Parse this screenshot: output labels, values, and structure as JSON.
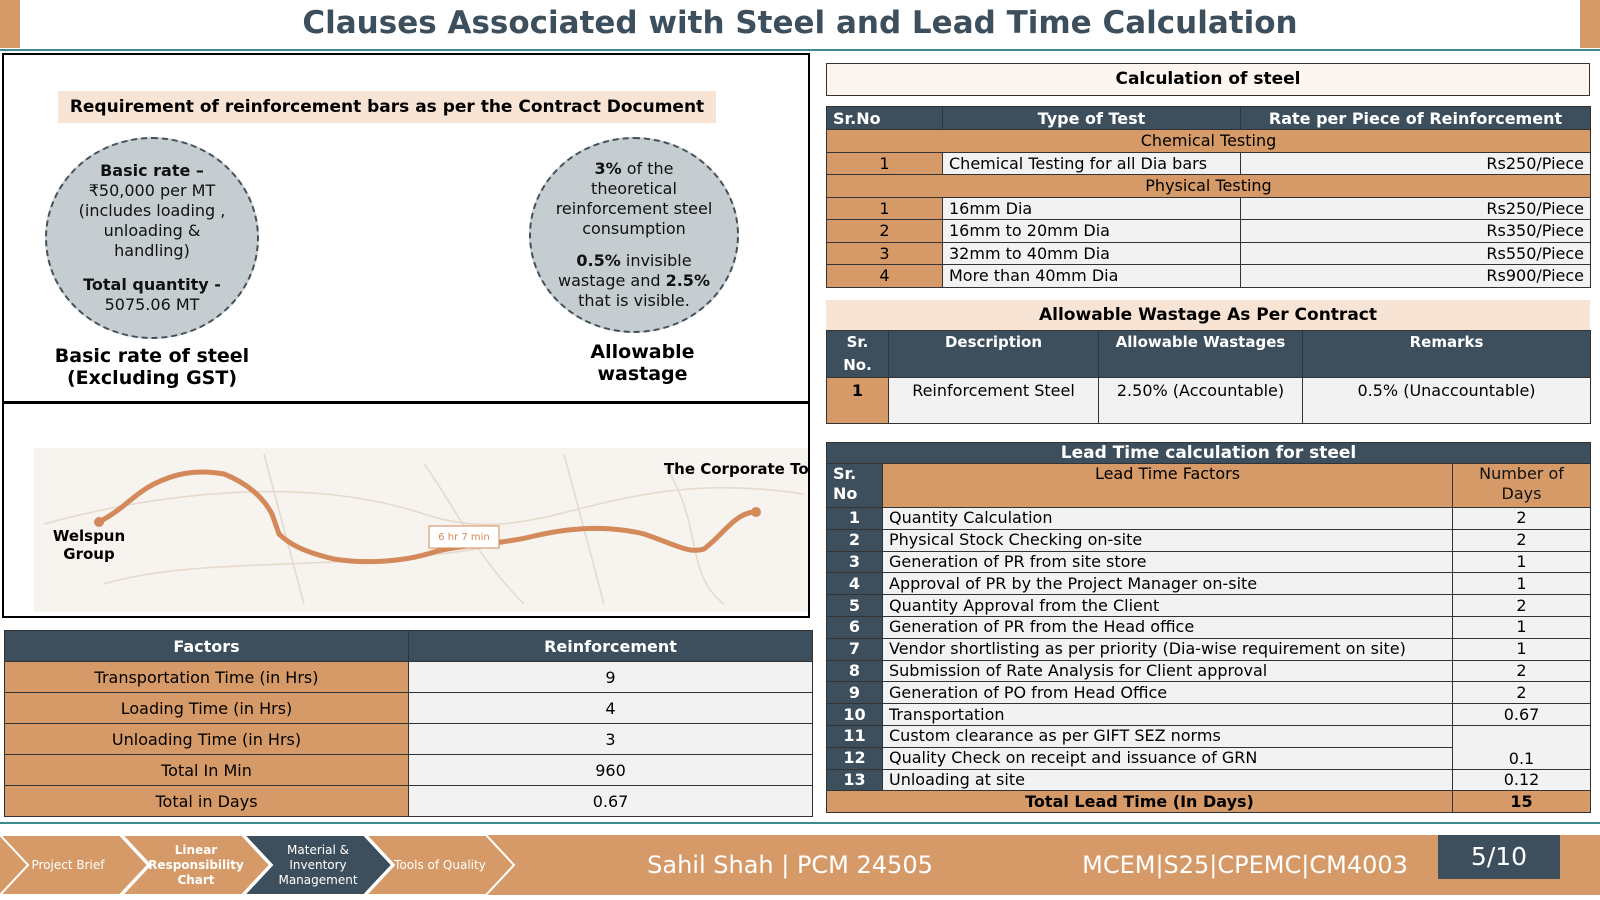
{
  "title": "Clauses Associated with Steel and Lead Time Calculation",
  "requirement": {
    "heading": "Requirement of reinforcement bars as per the Contract Document",
    "basic_rate": {
      "label": "Basic rate –",
      "text": "₹50,000 per MT (includes loading , unloading & handling)",
      "quantity_label": "Total quantity -",
      "quantity": "5075.06 MT",
      "caption": "Basic rate of steel (Excluding GST)"
    },
    "wastage": {
      "part1_bold": "3%",
      "part1": " of the theoretical reinforcement steel consumption",
      "part2_bold": "0.5%",
      "part2": " invisible wastage and ",
      "part3_bold": "2.5%",
      "part3": " that is visible.",
      "caption": "Allowable wastage"
    }
  },
  "map": {
    "origin": "Welspun Group",
    "destination": "The Corporate Tower",
    "duration": "6 hr 7 min"
  },
  "factors_table": {
    "header": [
      "Factors",
      "Reinforcement"
    ],
    "rows": [
      [
        "Transportation Time (in Hrs)",
        "9"
      ],
      [
        "Loading Time (in Hrs)",
        "4"
      ],
      [
        "Unloading Time (in Hrs)",
        "3"
      ],
      [
        "Total In Min",
        "960"
      ],
      [
        "Total in Days",
        "0.67"
      ]
    ]
  },
  "steel_table": {
    "title": "Calculation of steel",
    "header": [
      "Sr.No",
      "Type of Test",
      "Rate per Piece of Reinforcement"
    ],
    "sections": [
      {
        "name": "Chemical Testing",
        "rows": [
          [
            "1",
            "Chemical Testing for all Dia bars",
            "Rs250/Piece"
          ]
        ]
      },
      {
        "name": "Physical Testing",
        "rows": [
          [
            "1",
            "16mm Dia",
            "Rs250/Piece"
          ],
          [
            "2",
            "16mm to 20mm Dia",
            "Rs350/Piece"
          ],
          [
            "3",
            "32mm to 40mm Dia",
            "Rs550/Piece"
          ],
          [
            "4",
            "More than 40mm Dia",
            "Rs900/Piece"
          ]
        ]
      }
    ]
  },
  "wastage_table": {
    "title": "Allowable Wastage As Per Contract",
    "header": [
      "Sr. No.",
      "Description",
      "Allowable Wastages",
      "Remarks"
    ],
    "rows": [
      [
        "1",
        "Reinforcement Steel",
        "2.50% (Accountable)",
        "0.5% (Unaccountable)"
      ]
    ]
  },
  "lead_table": {
    "title": "Lead Time calculation for steel",
    "header": [
      "Sr. No",
      "Lead Time Factors",
      "Number of Days"
    ],
    "rows": [
      {
        "no": "1",
        "factor": "Quantity Calculation",
        "days": "2"
      },
      {
        "no": "2",
        "factor": "Physical Stock Checking on-site",
        "days": "2"
      },
      {
        "no": "3",
        "factor": "Generation of PR from site store",
        "days": "1"
      },
      {
        "no": "4",
        "factor": "Approval of PR by the Project Manager on-site",
        "days": "1"
      },
      {
        "no": "5",
        "factor": "Quantity Approval from the Client",
        "days": "2"
      },
      {
        "no": "6",
        "factor": "Generation of PR from the Head office",
        "days": "1"
      },
      {
        "no": "7",
        "factor": "Vendor shortlisting as per priority (Dia-wise requirement on site)",
        "days": "1"
      },
      {
        "no": "8",
        "factor": "Submission of Rate Analysis for Client approval",
        "days": "2"
      },
      {
        "no": "9",
        "factor": "Generation of PO from Head Office",
        "days": "2"
      },
      {
        "no": "10",
        "factor": "Transportation",
        "days": "0.67"
      },
      {
        "no": "11",
        "factor": "Custom clearance as per GIFT SEZ norms"
      },
      {
        "no": "12",
        "factor": "Quality Check on receipt and issuance of GRN",
        "days": "0.1"
      },
      {
        "no": "13",
        "factor": "Unloading at site",
        "days": "0.12"
      }
    ],
    "total": [
      "Total Lead Time (In Days)",
      "15"
    ]
  },
  "footer": {
    "nav": [
      "Project Brief",
      "Linear Responsibility Chart",
      "Material & Inventory Management",
      "Tools of Quality"
    ],
    "author": "Sahil Shah | PCM 24505",
    "course": "MCEM|S25|CPEMC|CM4003",
    "page": "5/10"
  }
}
